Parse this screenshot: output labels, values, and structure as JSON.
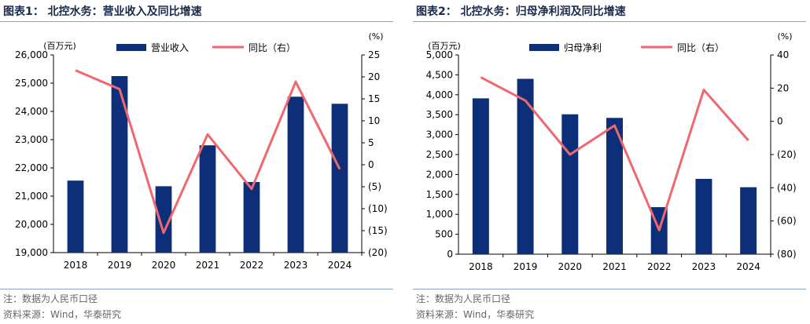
{
  "charts": [
    {
      "title": "图表1：  北控水务：营业收入及同比增速",
      "note": "注：数据为人民币口径",
      "source": "资料来源：Wind，华泰研究",
      "chart_data": {
        "type": "bar",
        "categories": [
          "2018",
          "2019",
          "2020",
          "2021",
          "2022",
          "2023",
          "2024"
        ],
        "series": [
          {
            "name": "营业收入",
            "type": "bar",
            "axis": "left",
            "color": "#0d2f7a",
            "values": [
              21550,
              25250,
              21350,
              22800,
              21500,
              24520,
              24270
            ]
          },
          {
            "name": "同比（右）",
            "type": "line",
            "axis": "right",
            "color": "#f0686e",
            "values": [
              21.5,
              17.2,
              -15.5,
              6.9,
              -5.5,
              18.9,
              -1.0
            ]
          }
        ],
        "y_left": {
          "unit": "(百万元)",
          "min": 19000,
          "max": 26000,
          "step": 1000,
          "ticks": [
            "19,000",
            "20,000",
            "21,000",
            "22,000",
            "23,000",
            "24,000",
            "25,000",
            "26,000"
          ]
        },
        "y_right": {
          "unit": "(%)",
          "min": -20,
          "max": 25,
          "step": 5,
          "ticks": [
            "(20)",
            "(15)",
            "(10)",
            "(5)",
            "0",
            "5",
            "10",
            "15",
            "20",
            "25"
          ]
        },
        "legend": "top"
      }
    },
    {
      "title": "图表2：  北控水务：归母净利润及同比增速",
      "note": "注：数据为人民币口径",
      "source": "资料来源：Wind，华泰研究",
      "chart_data": {
        "type": "bar",
        "categories": [
          "2018",
          "2019",
          "2020",
          "2021",
          "2022",
          "2023",
          "2024"
        ],
        "series": [
          {
            "name": "归母净利",
            "type": "bar",
            "axis": "left",
            "color": "#0d2f7a",
            "values": [
              3910,
              4400,
              3510,
              3420,
              1180,
              1890,
              1680
            ]
          },
          {
            "name": "同比（右）",
            "type": "line",
            "axis": "right",
            "color": "#f0686e",
            "values": [
              26.5,
              12.5,
              -20.0,
              -2.5,
              -65.5,
              19.0,
              -11.5
            ]
          }
        ],
        "y_left": {
          "unit": "(百万元)",
          "min": 0,
          "max": 5000,
          "step": 500,
          "ticks": [
            "0",
            "500",
            "1,000",
            "1,500",
            "2,000",
            "2,500",
            "3,000",
            "3,500",
            "4,000",
            "4,500",
            "5,000"
          ]
        },
        "y_right": {
          "unit": "(%)",
          "min": -80,
          "max": 40,
          "step": 20,
          "ticks": [
            "(80)",
            "(60)",
            "(40)",
            "(20)",
            "0",
            "20",
            "40"
          ]
        },
        "legend": "top"
      }
    }
  ]
}
